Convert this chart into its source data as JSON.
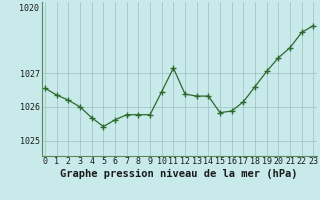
{
  "x": [
    0,
    1,
    2,
    3,
    4,
    5,
    6,
    7,
    8,
    9,
    10,
    11,
    12,
    13,
    14,
    15,
    16,
    17,
    18,
    19,
    20,
    21,
    22,
    23
  ],
  "y": [
    1026.55,
    1026.35,
    1026.2,
    1026.0,
    1025.68,
    1025.42,
    1025.62,
    1025.77,
    1025.77,
    1025.77,
    1026.45,
    1027.15,
    1026.38,
    1026.32,
    1026.32,
    1025.83,
    1025.88,
    1026.15,
    1026.6,
    1027.05,
    1027.45,
    1027.75,
    1028.2,
    1028.4
  ],
  "line_color": "#2d6a2d",
  "marker": "+",
  "marker_size": 4,
  "marker_linewidth": 1.0,
  "bg_color": "#c8eaea",
  "grid_color": "#9dbfbf",
  "xlabel": "Graphe pression niveau de la mer (hPa)",
  "xlabel_fontsize": 7.5,
  "xlabel_fontweight": "bold",
  "tick_fontsize": 6.0,
  "yticks": [
    1025,
    1026,
    1027
  ],
  "ytick_top": "1020",
  "ylim": [
    1024.55,
    1029.1
  ],
  "xlim": [
    -0.3,
    23.3
  ],
  "xtick_labels": [
    "0",
    "1",
    "2",
    "3",
    "4",
    "5",
    "6",
    "7",
    "8",
    "9",
    "10",
    "11",
    "12",
    "13",
    "14",
    "15",
    "16",
    "17",
    "18",
    "19",
    "20",
    "21",
    "22",
    "23"
  ],
  "linewidth": 0.9,
  "border_color": "#5a8a5a",
  "border_linewidth": 0.8
}
